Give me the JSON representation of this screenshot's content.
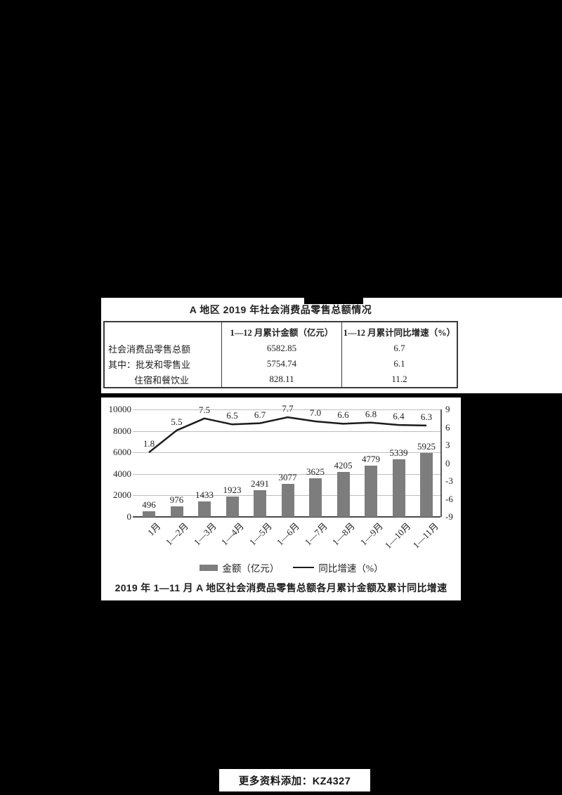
{
  "colors": {
    "page_background": "#000000",
    "panel": "#ffffff",
    "bar": "#7d7d7d",
    "line": "#1c1c1c",
    "grid": "#bdbdbd"
  },
  "table_section": {
    "title": "A 地区 2019 年社会消费品零售总额情况",
    "columns": [
      "",
      "1—12 月累计金额（亿元）",
      "1—12 月累计同比增速（%）"
    ],
    "rows": [
      {
        "label": "社会消费品零售总额",
        "amount": "6582.85",
        "growth": "6.7"
      },
      {
        "label": "其中：批发和零售业",
        "amount": "5754.74",
        "growth": "6.1"
      },
      {
        "label": "住宿和餐饮业",
        "amount": "828.11",
        "growth": "11.2"
      }
    ]
  },
  "chart_data": {
    "type": "bar+line",
    "categories": [
      "1月",
      "1—2月",
      "1—3月",
      "1—4月",
      "1—5月",
      "1—6月",
      "1—7月",
      "1—8月",
      "1—9月",
      "1—10月",
      "1—11月"
    ],
    "series": [
      {
        "name": "金额（亿元）",
        "type": "bar",
        "axis": "left",
        "color": "#7d7d7d",
        "values": [
          496,
          976,
          1433,
          1923,
          2491,
          3077,
          3625,
          4205,
          4779,
          5339,
          5925
        ]
      },
      {
        "name": "同比增速（%）",
        "type": "line",
        "axis": "right",
        "color": "#1c1c1c",
        "values": [
          1.8,
          5.5,
          7.5,
          6.5,
          6.7,
          7.7,
          7.0,
          6.6,
          6.8,
          6.4,
          6.3
        ]
      }
    ],
    "left_axis": {
      "ticks": [
        "10000",
        "8000",
        "6000",
        "4000",
        "2000",
        "0"
      ],
      "min": 0,
      "max": 10000
    },
    "right_axis": {
      "ticks": [
        "9",
        "6",
        "3",
        "0",
        "-3",
        "-6",
        "-9"
      ],
      "min": -9,
      "max": 9
    },
    "grid": true,
    "legend_position": "bottom",
    "caption": "2019 年 1—11 月 A 地区社会消费品零售总额各月累计金额及累计同比增速"
  },
  "footer": {
    "text": "更多资料添加：KZ4327"
  }
}
